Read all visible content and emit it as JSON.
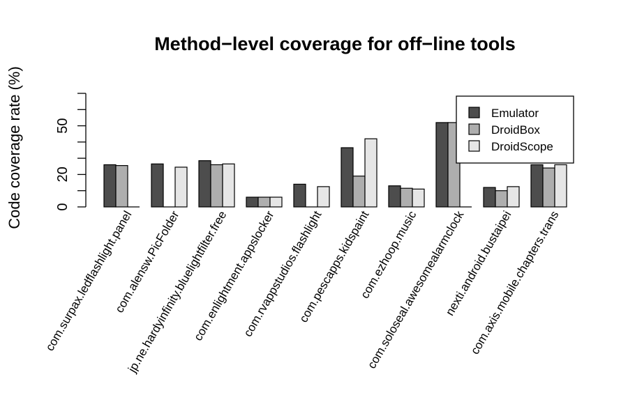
{
  "chart_data": {
    "type": "bar",
    "title": "Method−level coverage for off−line tools",
    "xlabel": "",
    "ylabel": "Code coverage rate (%)",
    "ylim": [
      0,
      70
    ],
    "yticks": [
      0,
      20,
      50
    ],
    "legend_position": "top-right",
    "grid": false,
    "categories": [
      "com.surpax.ledflashlight.panel",
      "com.alensw.PicFolder",
      "jp.ne.hardyinfinity.bluelightfilter.free",
      "com.enlightment.appslocker",
      "com.rvappstudios.flashlight",
      "com.pescapps.kidspaint",
      "com.ezhoop.music",
      "com.soloseal.awesomealarmclock",
      "nexti.android.bustaipei",
      "com.axis.mobile.chapters.trans"
    ],
    "series": [
      {
        "name": "Emulator",
        "color": "#4d4d4d",
        "values": [
          26,
          26.5,
          28.5,
          6,
          14,
          36.5,
          13,
          52,
          12,
          26
        ]
      },
      {
        "name": "DroidBox",
        "color": "#aeaeae",
        "values": [
          25.5,
          0,
          26,
          6,
          0,
          19,
          11.5,
          52,
          10,
          24
        ]
      },
      {
        "name": "DroidScope",
        "color": "#e6e6e6",
        "values": [
          0,
          24.5,
          26.5,
          6,
          12.5,
          42,
          11,
          0,
          12.5,
          26
        ]
      }
    ]
  }
}
